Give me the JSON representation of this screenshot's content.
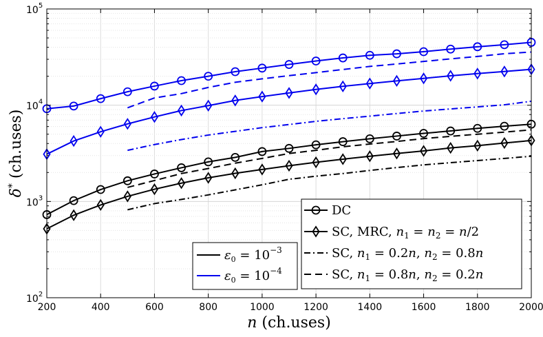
{
  "chart_data": {
    "type": "line",
    "yscale": "log",
    "xlabel": "n (ch.uses)",
    "ylabel": "δ* (ch.uses)",
    "xlim": [
      200,
      2000
    ],
    "ylim": [
      100,
      100000
    ],
    "grid": true,
    "x_ticks": [
      200,
      400,
      600,
      800,
      1000,
      1200,
      1400,
      1600,
      1800,
      2000
    ],
    "x_tick_labels": [
      "200",
      "400",
      "600",
      "800",
      "1000",
      "1200",
      "1400",
      "1600",
      "1800",
      "2000"
    ],
    "y_ticks": [
      100,
      1000,
      10000,
      100000
    ],
    "y_tick_labels": [
      {
        "base": "10",
        "exp": "2"
      },
      {
        "base": "10",
        "exp": "3"
      },
      {
        "base": "10",
        "exp": "4"
      },
      {
        "base": "10",
        "exp": "5"
      }
    ],
    "colors": {
      "eps_1e-3": "#000000",
      "eps_1e-4": "#0000ee"
    },
    "series": [
      {
        "name": "DC, ε0 = 1e-3",
        "color": "#000000",
        "dash": "solid",
        "marker": "circle",
        "x": [
          200,
          300,
          400,
          500,
          600,
          700,
          800,
          900,
          1000,
          1100,
          1200,
          1300,
          1400,
          1500,
          1600,
          1700,
          1800,
          1900,
          2000
        ],
        "y": [
          730,
          1020,
          1330,
          1640,
          1930,
          2240,
          2580,
          2870,
          3300,
          3560,
          3880,
          4180,
          4480,
          4780,
          5100,
          5400,
          5750,
          6050,
          6350
        ]
      },
      {
        "name": "SC, MRC, n1 = n2 = n/2, ε0 = 1e-3",
        "color": "#000000",
        "dash": "solid",
        "marker": "diamond",
        "x": [
          200,
          300,
          400,
          500,
          600,
          700,
          800,
          900,
          1000,
          1100,
          1200,
          1300,
          1400,
          1500,
          1600,
          1700,
          1800,
          1900,
          2000
        ],
        "y": [
          520,
          720,
          920,
          1130,
          1340,
          1550,
          1760,
          1960,
          2150,
          2350,
          2550,
          2750,
          2950,
          3150,
          3350,
          3600,
          3800,
          4050,
          4300
        ]
      },
      {
        "name": "SC, n1 = 0.2n, n2 = 0.8n, ε0 = 1e-3",
        "color": "#000000",
        "dash": "dashdot",
        "marker": "none",
        "x": [
          500,
          600,
          700,
          800,
          900,
          1000,
          1100,
          1200,
          1300,
          1400,
          1500,
          1600,
          1700,
          1800,
          1900,
          2000
        ],
        "y": [
          820,
          950,
          1050,
          1170,
          1320,
          1490,
          1700,
          1830,
          1950,
          2100,
          2250,
          2400,
          2530,
          2660,
          2800,
          2950
        ]
      },
      {
        "name": "SC, n1 = 0.8n, n2 = 0.2n, ε0 = 1e-3",
        "color": "#000000",
        "dash": "dashed",
        "marker": "none",
        "x": [
          500,
          600,
          700,
          800,
          900,
          1000,
          1100,
          1200,
          1300,
          1400,
          1500,
          1600,
          1700,
          1800,
          1900,
          2000
        ],
        "y": [
          1400,
          1650,
          1950,
          2200,
          2500,
          2800,
          3150,
          3400,
          3700,
          3950,
          4200,
          4500,
          4750,
          5000,
          5250,
          5550
        ]
      },
      {
        "name": "DC, ε0 = 1e-4",
        "color": "#0000ee",
        "dash": "solid",
        "marker": "circle",
        "x": [
          200,
          300,
          400,
          500,
          600,
          700,
          800,
          900,
          1000,
          1100,
          1200,
          1300,
          1400,
          1500,
          1600,
          1700,
          1800,
          1900,
          2000
        ],
        "y": [
          9200,
          9800,
          11700,
          13800,
          15800,
          18000,
          20000,
          22300,
          24300,
          26500,
          28800,
          31000,
          33000,
          34200,
          36000,
          38300,
          40500,
          42500,
          45000
        ]
      },
      {
        "name": "SC, MRC, n1 = n2 = n/2, ε0 = 1e-4",
        "color": "#0000ee",
        "dash": "solid",
        "marker": "diamond",
        "x": [
          200,
          300,
          400,
          500,
          600,
          700,
          800,
          900,
          1000,
          1100,
          1200,
          1300,
          1400,
          1500,
          1600,
          1700,
          1800,
          1900,
          2000
        ],
        "y": [
          3100,
          4250,
          5300,
          6400,
          7550,
          8800,
          9900,
          11200,
          12300,
          13400,
          14600,
          15700,
          16800,
          17900,
          19000,
          20200,
          21300,
          22400,
          23600
        ]
      },
      {
        "name": "SC, n1 = 0.2n, n2 = 0.8n, ε0 = 1e-4",
        "color": "#0000ee",
        "dash": "dashdot",
        "marker": "none",
        "x": [
          500,
          600,
          700,
          800,
          900,
          1000,
          1100,
          1200,
          1300,
          1400,
          1500,
          1600,
          1700,
          1800,
          1900,
          2000
        ],
        "y": [
          3400,
          3900,
          4400,
          4900,
          5350,
          5850,
          6300,
          6800,
          7250,
          7700,
          8200,
          8700,
          9150,
          9600,
          10100,
          11000
        ]
      },
      {
        "name": "SC, n1 = 0.8n, n2 = 0.2n, ε0 = 1e-4",
        "color": "#0000ee",
        "dash": "dashed",
        "marker": "none",
        "x": [
          500,
          600,
          700,
          800,
          900,
          1000,
          1100,
          1200,
          1300,
          1400,
          1500,
          1600,
          1700,
          1800,
          1900,
          2000
        ],
        "y": [
          9400,
          11900,
          13200,
          15300,
          17300,
          18800,
          20300,
          21800,
          23500,
          25300,
          26800,
          28500,
          30300,
          32100,
          34300,
          35700
        ]
      }
    ],
    "legend_eps": [
      {
        "prefix": "ε",
        "sub": "0",
        "eq": " = 10",
        "exp": "−3",
        "color": "#000000"
      },
      {
        "prefix": "ε",
        "sub": "0",
        "eq": " = 10",
        "exp": "−4",
        "color": "#0000ee"
      }
    ],
    "legend_schemes": [
      {
        "marker": "circle",
        "dash": "solid",
        "parts": [
          {
            "t": "DC",
            "style": "rm"
          }
        ]
      },
      {
        "marker": "diamond",
        "dash": "solid",
        "parts": [
          {
            "t": "SC, MRC, ",
            "style": "rm"
          },
          {
            "t": "n",
            "style": "it"
          },
          {
            "t": "1",
            "style": "sub"
          },
          {
            "t": " = ",
            "style": "rm"
          },
          {
            "t": "n",
            "style": "it"
          },
          {
            "t": "2",
            "style": "sub"
          },
          {
            "t": " = ",
            "style": "rm"
          },
          {
            "t": "n",
            "style": "it"
          },
          {
            "t": "/2",
            "style": "rm"
          }
        ]
      },
      {
        "marker": "none",
        "dash": "dashdot",
        "parts": [
          {
            "t": "SC, ",
            "style": "rm"
          },
          {
            "t": "n",
            "style": "it"
          },
          {
            "t": "1",
            "style": "sub"
          },
          {
            "t": " = 0.2",
            "style": "rm"
          },
          {
            "t": "n",
            "style": "it"
          },
          {
            "t": ", ",
            "style": "rm"
          },
          {
            "t": "n",
            "style": "it"
          },
          {
            "t": "2",
            "style": "sub"
          },
          {
            "t": " = 0.8",
            "style": "rm"
          },
          {
            "t": "n",
            "style": "it"
          }
        ]
      },
      {
        "marker": "none",
        "dash": "dashed",
        "parts": [
          {
            "t": "SC, ",
            "style": "rm"
          },
          {
            "t": "n",
            "style": "it"
          },
          {
            "t": "1",
            "style": "sub"
          },
          {
            "t": " = 0.8",
            "style": "rm"
          },
          {
            "t": "n",
            "style": "it"
          },
          {
            "t": ", ",
            "style": "rm"
          },
          {
            "t": "n",
            "style": "it"
          },
          {
            "t": "2",
            "style": "sub"
          },
          {
            "t": " = 0.2",
            "style": "rm"
          },
          {
            "t": "n",
            "style": "it"
          }
        ]
      }
    ]
  }
}
